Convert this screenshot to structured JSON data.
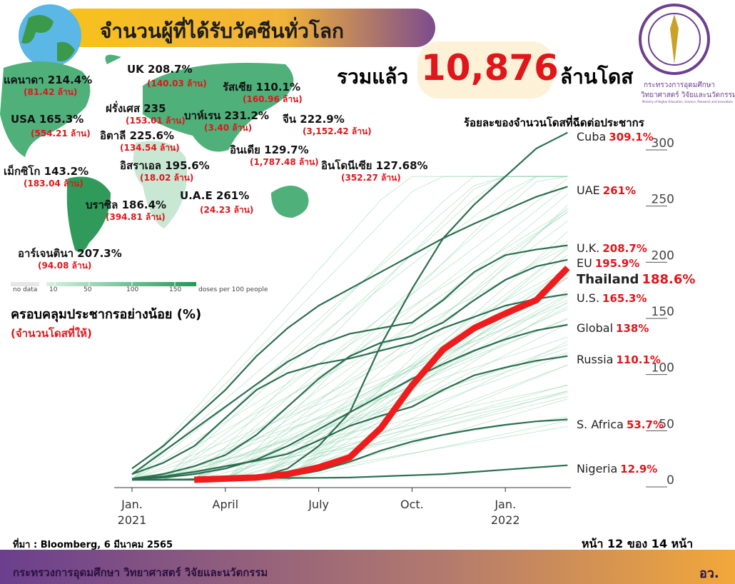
{
  "header": {
    "title": "จำนวนผู้ที่ได้รับวัคซีนทั่วโลก",
    "total_prefix": "รวมแล้ว",
    "total": "10,876",
    "total_suffix": "ล้านโดส"
  },
  "logo": {
    "line1": "กระทรวงการอุดมศึกษา",
    "line2": "วิทยาศาสตร์ วิจัยและนวัตกรรม",
    "line3": "Ministry of Higher Education, Science, Research and Innovation"
  },
  "map": {
    "countries": [
      {
        "label": "แคนาดา 214.4%",
        "doses": "(81.42 ล้าน)"
      },
      {
        "label": "UK 208.7%",
        "doses": "(140.03 ล้าน)"
      },
      {
        "label": "รัสเซีย 110.1%",
        "doses": "(160.96 ล้าน)"
      },
      {
        "label": "ฝรั่งเศส 235",
        "doses": "(153.01 ล้าน)"
      },
      {
        "label": "บาห์เรน 231.2%",
        "doses": "(3.40 ล้าน)"
      },
      {
        "label": "จีน 222.9%",
        "doses": "(3,152.42 ล้าน)"
      },
      {
        "label": "USA 165.3%",
        "doses": "(554.21 ล้าน)"
      },
      {
        "label": "อิตาลี 225.6%",
        "doses": "(134.54 ล้าน)"
      },
      {
        "label": "อินเดีย 129.7%",
        "doses": "(1,787.48 ล้าน)"
      },
      {
        "label": "อินโดนีเซีย 127.68%",
        "doses": "(352.27 ล้าน)"
      },
      {
        "label": "เม็กซิโก 143.2%",
        "doses": "(183.04 ล้าน)"
      },
      {
        "label": "อิสราเอล 195.6%",
        "doses": "(18.02 ล้าน)"
      },
      {
        "label": "U.A.E 261%",
        "doses": "(24.23 ล้าน)"
      },
      {
        "label": "บราซิล 186.4%",
        "doses": "(394.81 ล้าน)"
      },
      {
        "label": "อาร์เจนตินา 207.3%",
        "doses": "(94.08 ล้าน)"
      }
    ],
    "legend_none": "no data",
    "legend_ticks": [
      10,
      50,
      100,
      150
    ],
    "legend_unit": "doses per 100 people",
    "coverage_title": "ครอบคลุมประชากรอย่างน้อย (%)",
    "coverage_subtitle": "(จำนวนโดสที่ให้)"
  },
  "chart_data": {
    "type": "line",
    "title": "ร้อยละของจำนวนโดสที่ฉีดต่อประชากร",
    "categories": [
      "Jan.\n2021",
      null,
      null,
      "April",
      null,
      null,
      "July",
      null,
      null,
      "Oct.",
      null,
      null,
      "Jan.\n2022",
      null,
      null
    ],
    "ylim": [
      0,
      300
    ],
    "yticks": [
      0,
      50,
      100,
      150,
      200,
      250,
      300
    ],
    "series": [
      {
        "name": "Cuba",
        "color": "#2b6e4f",
        "values": [
          0,
          0,
          0,
          0,
          2,
          10,
          30,
          60,
          120,
          170,
          215,
          245,
          270,
          295,
          309.1
        ],
        "value_labels": [
          null,
          null,
          null,
          null,
          null,
          null,
          null,
          null,
          null,
          null,
          null,
          null,
          null,
          null,
          "309.1%"
        ]
      },
      {
        "name": "UAE",
        "color": "#2b6e4f",
        "values": [
          10,
          30,
          55,
          80,
          110,
          135,
          155,
          170,
          185,
          200,
          215,
          228,
          240,
          252,
          261
        ],
        "value_labels": [
          null,
          null,
          null,
          null,
          null,
          null,
          null,
          null,
          null,
          null,
          null,
          null,
          null,
          null,
          "261%"
        ]
      },
      {
        "name": "U.K.",
        "color": "#2b6e4f",
        "values": [
          5,
          25,
          45,
          65,
          85,
          105,
          120,
          130,
          135,
          140,
          160,
          185,
          200,
          205,
          208.7
        ],
        "value_labels": [
          null,
          null,
          null,
          null,
          null,
          null,
          null,
          null,
          null,
          null,
          null,
          null,
          null,
          null,
          "208.7%"
        ]
      },
      {
        "name": "EU",
        "color": "#2b6e4f",
        "values": [
          1,
          5,
          12,
          22,
          40,
          65,
          90,
          110,
          122,
          128,
          140,
          160,
          178,
          190,
          195.9
        ],
        "value_labels": [
          null,
          null,
          null,
          null,
          null,
          null,
          null,
          null,
          null,
          null,
          null,
          null,
          null,
          null,
          "195.9%"
        ]
      },
      {
        "name": "Thailand",
        "color": "#ee1c1c",
        "values": [
          null,
          null,
          0,
          1,
          2,
          5,
          11,
          20,
          46,
          84,
          116,
          135,
          148,
          160,
          188.6
        ],
        "value_labels": [
          null,
          null,
          null,
          null,
          null,
          null,
          null,
          null,
          null,
          null,
          null,
          null,
          null,
          null,
          "188.6%"
        ]
      },
      {
        "name": "U.S.",
        "color": "#2b6e4f",
        "values": [
          5,
          15,
          30,
          55,
          80,
          95,
          103,
          108,
          115,
          122,
          135,
          145,
          155,
          161,
          165.3
        ],
        "value_labels": [
          null,
          null,
          null,
          null,
          null,
          null,
          null,
          null,
          null,
          null,
          null,
          null,
          null,
          null,
          "165.3%"
        ]
      },
      {
        "name": "Global",
        "color": "#2b6e4f",
        "values": [
          0.5,
          2,
          5,
          10,
          18,
          30,
          45,
          60,
          75,
          90,
          103,
          115,
          125,
          133,
          138
        ],
        "value_labels": [
          null,
          null,
          null,
          null,
          null,
          null,
          null,
          null,
          null,
          null,
          null,
          null,
          null,
          null,
          "138%"
        ]
      },
      {
        "name": "Russia",
        "color": "#2b6e4f",
        "values": [
          1,
          3,
          7,
          12,
          17,
          23,
          35,
          48,
          57,
          65,
          80,
          93,
          100,
          106,
          110.1
        ],
        "value_labels": [
          null,
          null,
          null,
          null,
          null,
          null,
          null,
          null,
          null,
          null,
          null,
          null,
          null,
          null,
          "110.1%"
        ]
      },
      {
        "name": "S. Africa",
        "color": "#2b6e4f",
        "values": [
          0,
          0,
          0.3,
          0.5,
          1,
          3,
          8,
          16,
          26,
          34,
          40,
          45,
          49,
          52,
          53.7
        ],
        "value_labels": [
          null,
          null,
          null,
          null,
          null,
          null,
          null,
          null,
          null,
          null,
          null,
          null,
          null,
          null,
          "53.7%"
        ]
      },
      {
        "name": "Nigeria",
        "color": "#2b6e4f",
        "values": [
          0,
          0,
          0.5,
          1,
          1.5,
          1.6,
          1.7,
          2,
          3,
          4,
          5,
          7,
          9,
          11,
          12.9
        ],
        "value_labels": [
          null,
          null,
          null,
          null,
          null,
          null,
          null,
          null,
          null,
          null,
          null,
          null,
          null,
          null,
          "12.9%"
        ]
      }
    ]
  },
  "footer": {
    "source": "ที่มา : Bloomberg, 6 มีนาคม 2565",
    "page": "หน้า 12 ของ 14 หน้า",
    "ministry": "กระทรวงการอุดมศึกษา วิทยาศาสตร์ วิจัยและนวัตกรรม",
    "short": "อว."
  }
}
